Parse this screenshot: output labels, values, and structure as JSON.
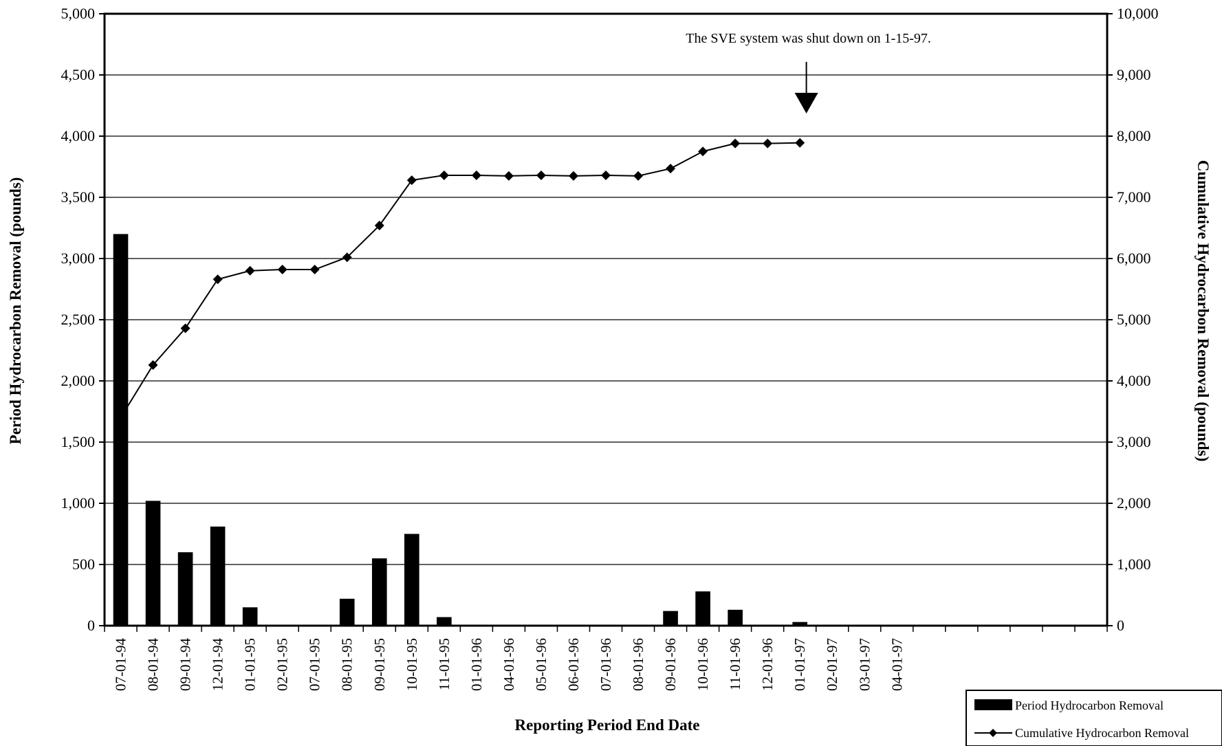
{
  "chart_data": {
    "type": "bar",
    "categories": [
      "07-01-94",
      "08-01-94",
      "09-01-94",
      "12-01-94",
      "01-01-95",
      "02-01-95",
      "07-01-95",
      "08-01-95",
      "09-01-95",
      "10-01-95",
      "11-01-95",
      "01-01-96",
      "04-01-96",
      "05-01-96",
      "06-01-96",
      "07-01-96",
      "08-01-96",
      "09-01-96",
      "10-01-96",
      "11-01-96",
      "12-01-96",
      "01-01-97",
      "02-01-97",
      "03-01-97",
      "04-01-97"
    ],
    "series": [
      {
        "name": "Period Hydrocarbon Removal",
        "type": "bar",
        "axis": "left",
        "color": "#000000",
        "values": [
          3200,
          1020,
          600,
          810,
          150,
          5,
          5,
          220,
          550,
          750,
          70,
          5,
          5,
          5,
          5,
          5,
          5,
          120,
          280,
          130,
          5,
          30,
          0,
          0,
          0
        ]
      },
      {
        "name": "Cumulative Hydrocarbon Removal",
        "type": "line",
        "axis": "right",
        "marker": "diamond",
        "color": "#000000",
        "values": [
          3400,
          4260,
          4860,
          5660,
          5800,
          5820,
          5820,
          6020,
          6540,
          7280,
          7360,
          7360,
          7350,
          7360,
          7350,
          7360,
          7350,
          7470,
          7750,
          7880,
          7880,
          7890,
          null,
          null,
          null
        ]
      }
    ],
    "xlabel": "Reporting Period End Date",
    "ylabel": "Period Hydrocarbon Removal (pounds)",
    "y2label": "Cumulative Hydrocarbon Removal (pounds)",
    "ylim": [
      0,
      5000
    ],
    "y2lim": [
      0,
      10000
    ],
    "yticks": [
      "0",
      "500",
      "1,000",
      "1,500",
      "2,000",
      "2,500",
      "3,000",
      "3,500",
      "4,000",
      "4,500",
      "5,000"
    ],
    "y2ticks": [
      "0",
      "1,000",
      "2,000",
      "3,000",
      "4,000",
      "5,000",
      "6,000",
      "7,000",
      "8,000",
      "9,000",
      "10,000"
    ],
    "grid": true,
    "legend_position": "bottom-right",
    "legend": [
      "Period Hydrocarbon Removal",
      "Cumulative Hydrocarbon Removal"
    ],
    "annotation": {
      "text": "The SVE system was shut down on 1-15-97.",
      "category": "01-01-97"
    }
  }
}
